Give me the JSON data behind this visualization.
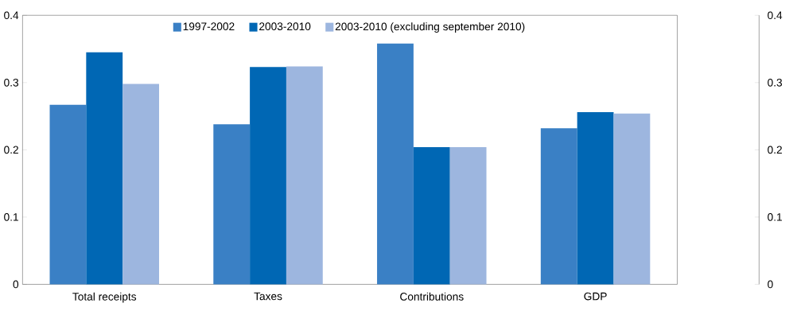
{
  "chart_data": {
    "type": "bar",
    "categories": [
      "Total receipts",
      "Taxes",
      "Contributions",
      "GDP"
    ],
    "series": [
      {
        "name": "1997-2002",
        "color": "#3a80c5",
        "values": [
          0.267,
          0.238,
          0.358,
          0.232
        ]
      },
      {
        "name": "2003-2010",
        "color": "#0067b4",
        "values": [
          0.345,
          0.323,
          0.204,
          0.256
        ]
      },
      {
        "name": "2003-2010 (excluding september 2010)",
        "color": "#9db6df",
        "values": [
          0.298,
          0.324,
          0.204,
          0.254
        ]
      }
    ],
    "ylim": [
      0,
      0.4
    ],
    "yticks": [
      0,
      0.1,
      0.2,
      0.3,
      0.4
    ],
    "y2lim": [
      0,
      0.4
    ],
    "y2ticks": [
      0,
      0.1,
      0.2,
      0.3,
      0.4
    ],
    "legend": "top"
  }
}
